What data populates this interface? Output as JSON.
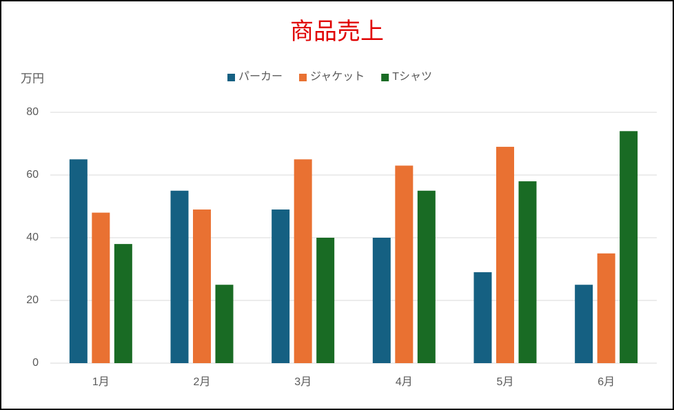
{
  "chart_data": {
    "type": "bar",
    "title": "商品売上",
    "y_label": "万円",
    "categories": [
      "1月",
      "2月",
      "3月",
      "4月",
      "5月",
      "6月"
    ],
    "series": [
      {
        "name": "パーカー",
        "color": "#156082",
        "values": [
          65,
          55,
          49,
          40,
          29,
          25
        ]
      },
      {
        "name": "ジャケット",
        "color": "#e97132",
        "values": [
          48,
          49,
          65,
          63,
          69,
          35
        ]
      },
      {
        "name": "Tシャツ",
        "color": "#196b24",
        "values": [
          38,
          25,
          40,
          55,
          58,
          74
        ]
      }
    ],
    "ylim": [
      0,
      80
    ],
    "yticks": [
      0,
      20,
      40,
      60,
      80
    ],
    "grid": true,
    "legend": "top"
  }
}
